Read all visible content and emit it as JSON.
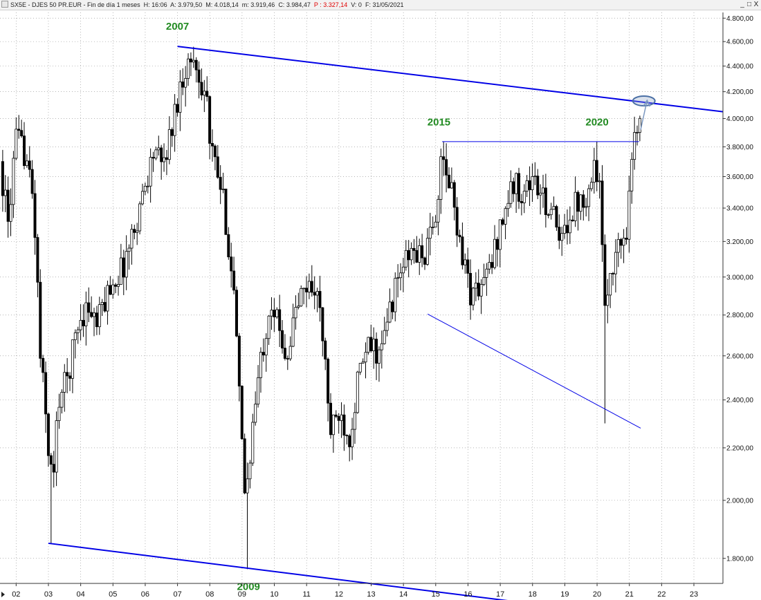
{
  "window": {
    "ticker": "SX5E",
    "name": "DJES 50 PR.EUR",
    "period": "Fin de día 1 meses",
    "time": "H: 16:06",
    "open": "A: 3.979,50",
    "high": "M: 4.018,14",
    "low": "m: 3.919,46",
    "close": "C: 3.984,47",
    "p_value": "P : 3.327,14",
    "volume": "V: 0",
    "date": "F: 31/05/2021",
    "controls": [
      "_",
      "□",
      "X"
    ]
  },
  "colors": {
    "candle": "#000000",
    "trendline": "#0000e6",
    "annotation": "#228B22",
    "grid": "#9a9a9a",
    "highlight": "#4a6fa5"
  },
  "chart_data": {
    "type": "candlestick",
    "y_scale": "log",
    "ylim": [
      1720,
      4850
    ],
    "y_ticks": [
      "4.800,00",
      "4.600,00",
      "4.400,00",
      "4.200,00",
      "4.000,00",
      "3.800,00",
      "3.600,00",
      "3.400,00",
      "3.200,00",
      "3.000,00",
      "2.800,00",
      "2.600,00",
      "2.400,00",
      "2.200,00",
      "2.000,00",
      "1.800,00"
    ],
    "y_tick_values": [
      4800,
      4600,
      4400,
      4200,
      4000,
      3800,
      3600,
      3400,
      3200,
      3000,
      2800,
      2600,
      2400,
      2200,
      2000,
      1800
    ],
    "xlim": [
      2001.5,
      2023.9
    ],
    "x_ticks": [
      "02",
      "03",
      "04",
      "05",
      "06",
      "07",
      "08",
      "09",
      "10",
      "11",
      "12",
      "13",
      "14",
      "15",
      "16",
      "17",
      "18",
      "19",
      "20",
      "21",
      "22",
      "23"
    ],
    "x_tick_values": [
      2002,
      2003,
      2004,
      2005,
      2006,
      2007,
      2008,
      2009,
      2010,
      2011,
      2012,
      2013,
      2014,
      2015,
      2016,
      2017,
      2018,
      2019,
      2020,
      2021,
      2022,
      2023
    ],
    "price_path": [
      [
        2001.5,
        3700
      ],
      [
        2001.75,
        3300
      ],
      [
        2002.0,
        3850
      ],
      [
        2002.3,
        3750
      ],
      [
        2002.55,
        3400
      ],
      [
        2002.75,
        2600
      ],
      [
        2003.0,
        2200
      ],
      [
        2003.15,
        2050
      ],
      [
        2003.3,
        2400
      ],
      [
        2003.6,
        2500
      ],
      [
        2003.9,
        2750
      ],
      [
        2004.2,
        2850
      ],
      [
        2004.5,
        2750
      ],
      [
        2004.9,
        2950
      ],
      [
        2005.3,
        3050
      ],
      [
        2005.7,
        3300
      ],
      [
        2006.0,
        3550
      ],
      [
        2006.3,
        3800
      ],
      [
        2006.5,
        3650
      ],
      [
        2006.8,
        3900
      ],
      [
        2007.0,
        4150
      ],
      [
        2007.25,
        4400
      ],
      [
        2007.5,
        4450
      ],
      [
        2007.7,
        4300
      ],
      [
        2007.9,
        4200
      ],
      [
        2008.0,
        3800
      ],
      [
        2008.2,
        3650
      ],
      [
        2008.45,
        3400
      ],
      [
        2008.75,
        2900
      ],
      [
        2008.95,
        2300
      ],
      [
        2009.1,
        2000
      ],
      [
        2009.3,
        2250
      ],
      [
        2009.6,
        2600
      ],
      [
        2009.9,
        2900
      ],
      [
        2010.1,
        2750
      ],
      [
        2010.4,
        2600
      ],
      [
        2010.7,
        2850
      ],
      [
        2011.0,
        2950
      ],
      [
        2011.3,
        2950
      ],
      [
        2011.55,
        2600
      ],
      [
        2011.75,
        2250
      ],
      [
        2012.0,
        2350
      ],
      [
        2012.35,
        2250
      ],
      [
        2012.6,
        2500
      ],
      [
        2012.95,
        2650
      ],
      [
        2013.3,
        2600
      ],
      [
        2013.6,
        2850
      ],
      [
        2013.95,
        3050
      ],
      [
        2014.3,
        3150
      ],
      [
        2014.6,
        3100
      ],
      [
        2014.9,
        3250
      ],
      [
        2015.2,
        3700
      ],
      [
        2015.5,
        3500
      ],
      [
        2015.75,
        3200
      ],
      [
        2016.1,
        2900
      ],
      [
        2016.4,
        2950
      ],
      [
        2016.7,
        3050
      ],
      [
        2017.0,
        3300
      ],
      [
        2017.4,
        3550
      ],
      [
        2017.75,
        3500
      ],
      [
        2018.0,
        3600
      ],
      [
        2018.3,
        3450
      ],
      [
        2018.6,
        3400
      ],
      [
        2018.85,
        3150
      ],
      [
        2019.1,
        3350
      ],
      [
        2019.4,
        3450
      ],
      [
        2019.7,
        3500
      ],
      [
        2019.95,
        3700
      ],
      [
        2020.1,
        3500
      ],
      [
        2020.22,
        2750
      ],
      [
        2020.4,
        3050
      ],
      [
        2020.75,
        3200
      ],
      [
        2020.9,
        3250
      ],
      [
        2021.0,
        3600
      ],
      [
        2021.15,
        3850
      ],
      [
        2021.4,
        3985
      ]
    ],
    "candle_step": 0.0833,
    "levels": {
      "high_2007": 4557,
      "low_2003": 1850,
      "low_2009": 1765,
      "low_2020": 2300,
      "resistance": 3836
    },
    "trendlines": [
      {
        "x1": 2007.0,
        "y1": 4560,
        "x2": 2023.9,
        "y2": 4050,
        "width": 2
      },
      {
        "x1": 2003.0,
        "y1": 1850,
        "x2": 2017.8,
        "y2": 1660,
        "width": 2
      },
      {
        "x1": 2015.2,
        "y1": 3836,
        "x2": 2021.3,
        "y2": 3836,
        "width": 1
      },
      {
        "x1": 2014.75,
        "y1": 2805,
        "x2": 2021.35,
        "y2": 2280,
        "width": 1
      }
    ],
    "annotations": [
      {
        "text": "2007",
        "x": 2007.0,
        "y": 4700
      },
      {
        "text": "2009",
        "x": 2009.2,
        "y": 1700
      },
      {
        "text": "2015",
        "x": 2015.1,
        "y": 3950
      },
      {
        "text": "2020",
        "x": 2020.0,
        "y": 3950
      }
    ],
    "highlight": {
      "x": 2021.45,
      "y": 4130
    },
    "arrow": {
      "x1": 2021.35,
      "y1": 3920,
      "x2": 2021.55,
      "y2": 4135
    },
    "grid": true
  }
}
